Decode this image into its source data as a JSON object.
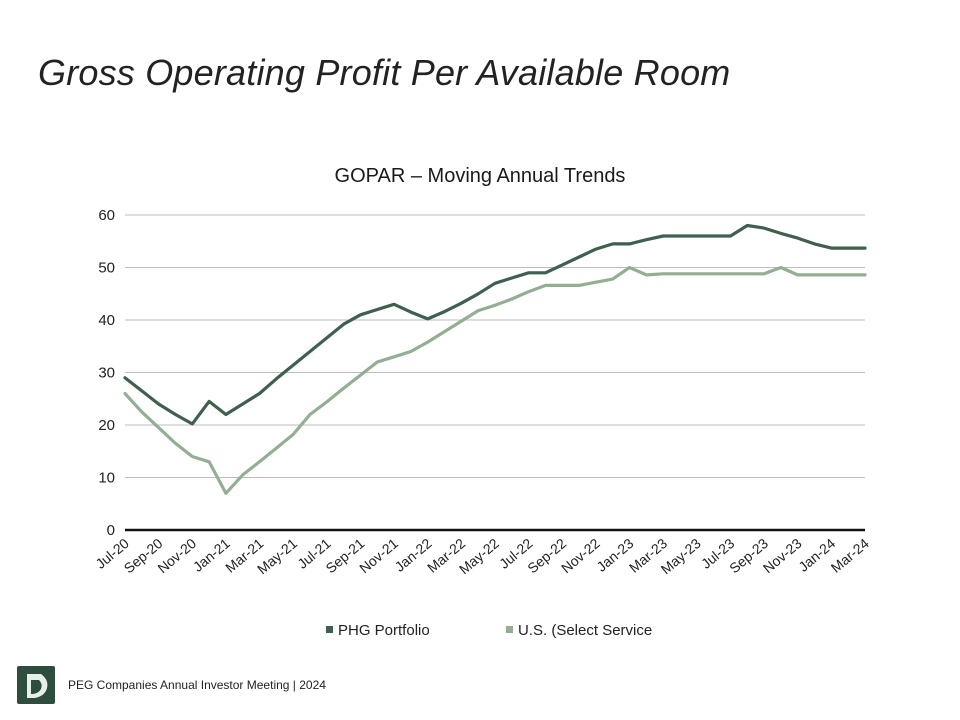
{
  "slide": {
    "title": "Gross Operating Profit Per Available Room"
  },
  "footer": {
    "text": "PEG Companies Annual Investor Meeting | 2024"
  },
  "colors": {
    "phg": "#3f5f4f",
    "us": "#93ae92",
    "grid": "#bdbdbd",
    "axis": "#111111",
    "logo_bg": "#2f4d3f"
  },
  "chart_data": {
    "type": "line",
    "title": "GOPAR – Moving Annual Trends",
    "xlabel": "",
    "ylabel": "",
    "ylim": [
      0,
      60
    ],
    "yticks": [
      0,
      10,
      20,
      30,
      40,
      50,
      60
    ],
    "grid": true,
    "legend_position": "bottom",
    "x": [
      "Jul-20",
      "Aug-20",
      "Sep-20",
      "Oct-20",
      "Nov-20",
      "Dec-20",
      "Jan-21",
      "Feb-21",
      "Mar-21",
      "Apr-21",
      "May-21",
      "Jun-21",
      "Jul-21",
      "Aug-21",
      "Sep-21",
      "Oct-21",
      "Nov-21",
      "Dec-21",
      "Jan-22",
      "Feb-22",
      "Mar-22",
      "Apr-22",
      "May-22",
      "Jun-22",
      "Jul-22",
      "Aug-22",
      "Sep-22",
      "Oct-22",
      "Nov-22",
      "Dec-22",
      "Jan-23",
      "Feb-23",
      "Mar-23",
      "Apr-23",
      "May-23",
      "Jun-23",
      "Jul-23",
      "Aug-23",
      "Sep-23",
      "Oct-23",
      "Nov-23",
      "Dec-23",
      "Jan-24",
      "Feb-24",
      "Mar-24"
    ],
    "tick_labels": [
      "Jul-20",
      "Sep-20",
      "Nov-20",
      "Jan-21",
      "Mar-21",
      "May-21",
      "Jul-21",
      "Sep-21",
      "Nov-21",
      "Jan-22",
      "Mar-22",
      "May-22",
      "Jul-22",
      "Sep-22",
      "Nov-22",
      "Jan-23",
      "Mar-23",
      "May-23",
      "Jul-23",
      "Sep-23",
      "Nov-23",
      "Jan-24",
      "Mar-24"
    ],
    "series": [
      {
        "name": "PHG Portfolio",
        "values": [
          29,
          26.5,
          24,
          22,
          20.2,
          24.5,
          22,
          24,
          26,
          28.8,
          31.4,
          34,
          36.6,
          39.2,
          41,
          42,
          43,
          41.5,
          40.2,
          41.6,
          43.2,
          45,
          47,
          48,
          49,
          49,
          50.5,
          52,
          53.5,
          54.5,
          54.5,
          55.3,
          56,
          56,
          56,
          56,
          56,
          58,
          57.5,
          56.5,
          55.6,
          54.5,
          53.7,
          53.7,
          53.7
        ]
      },
      {
        "name": "U.S. (Select Service",
        "values": [
          26,
          22.5,
          19.5,
          16.5,
          14,
          13,
          7,
          10.5,
          13,
          15.6,
          18.2,
          22,
          24.4,
          27,
          29.5,
          32,
          33,
          34,
          35.8,
          37.8,
          39.8,
          41.8,
          42.8,
          44,
          45.4,
          46.6,
          46.6,
          46.6,
          47.2,
          47.8,
          50,
          48.6,
          48.8,
          48.8,
          48.8,
          48.8,
          48.8,
          48.8,
          48.8,
          50,
          48.6,
          48.6,
          48.6,
          48.6,
          48.6
        ]
      }
    ]
  }
}
